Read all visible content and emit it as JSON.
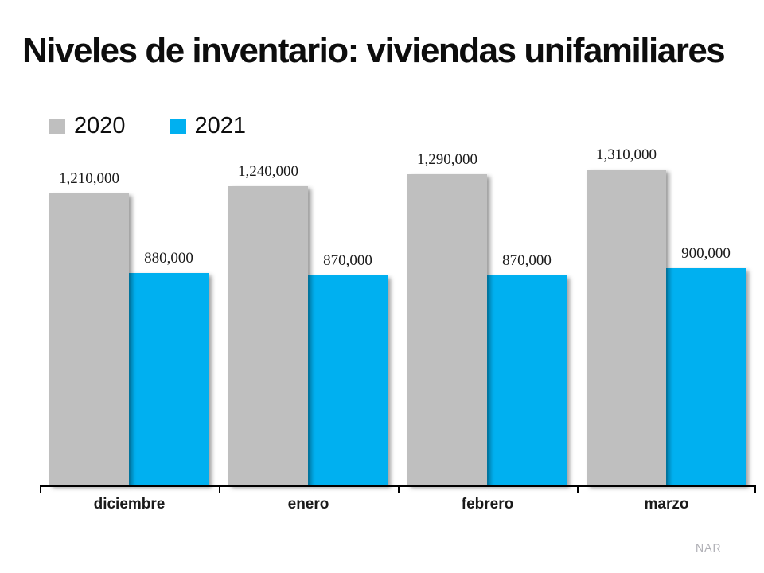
{
  "title": "Niveles de inventario: viviendas unifamiliares",
  "legend": {
    "items": [
      {
        "label": "2020",
        "color": "#bfbfbf"
      },
      {
        "label": "2021",
        "color": "#00b0f0"
      }
    ]
  },
  "watermark": "NAR",
  "chart_data": {
    "type": "bar",
    "title": "Niveles de inventario: viviendas unifamiliares",
    "categories": [
      "diciembre",
      "enero",
      "febrero",
      "marzo"
    ],
    "series": [
      {
        "name": "2020",
        "color": "#bfbfbf",
        "values": [
          1210000,
          1240000,
          1290000,
          1310000
        ],
        "value_labels": [
          "1,210,000",
          "1,240,000",
          "1,290,000",
          "1,310,000"
        ]
      },
      {
        "name": "2021",
        "color": "#00b0f0",
        "values": [
          880000,
          870000,
          870000,
          900000
        ],
        "value_labels": [
          "880,000",
          "870,000",
          "870,000",
          "900,000"
        ]
      }
    ],
    "xlabel": "",
    "ylabel": "",
    "ylim": [
      0,
      1400000
    ],
    "grid": false,
    "legend_position": "top-left",
    "value_labels_shown": true
  }
}
